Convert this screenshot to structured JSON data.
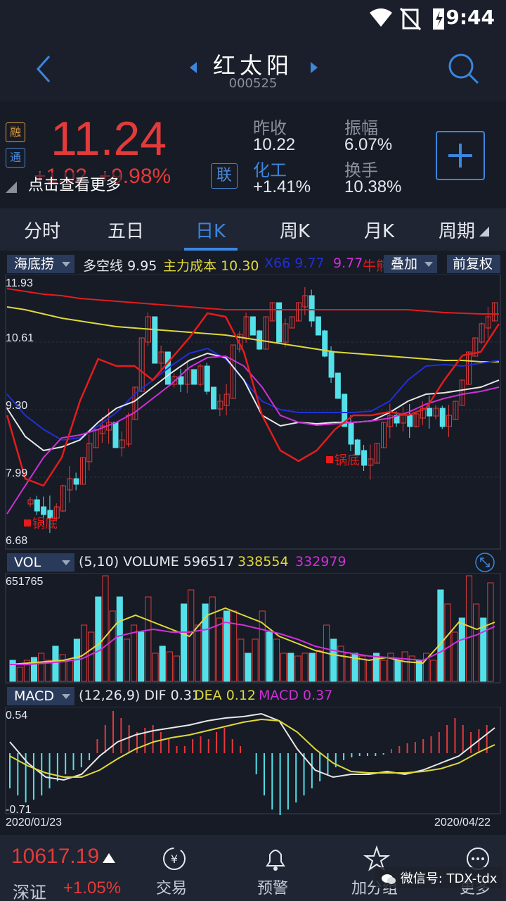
{
  "status": {
    "time": "9:44"
  },
  "header": {
    "title": "红太阳",
    "code": "000525"
  },
  "quote": {
    "badge1": "融",
    "badge2": "通",
    "price": "11.24",
    "change": "+1.02",
    "change_pct": "+9.98%",
    "tip": "点击查看更多",
    "lian": "联",
    "prev_close_label": "昨收",
    "prev_close": "10.22",
    "amplitude_label": "振幅",
    "amplitude": "6.07%",
    "sector_label": "化工",
    "sector_change": "+1.41%",
    "turnover_label": "换手",
    "turnover": "10.38%",
    "add_label": "+"
  },
  "tabs": [
    "分时",
    "五日",
    "日K",
    "周K",
    "月K",
    "周期"
  ],
  "active_tab": "日K",
  "main_chart": {
    "indicator": "海底捞",
    "l1": "多空线",
    "v1": "9.95",
    "l2": "主力成本",
    "v2": "10.30",
    "l3": "X66",
    "v3": "9.77",
    "v4": "9.77",
    "l5": "牛熊",
    "overlay": "叠加",
    "adjust": "前复权",
    "y_labels": [
      "11.93",
      "10.61",
      "9.30",
      "7.99",
      "6.68"
    ],
    "marker1": "锅底",
    "marker2": "锅底",
    "colors": {
      "up": "#e43a3a",
      "down": "#54e0e8",
      "ma_red": "#e41c1c",
      "ma_yellow": "#e0d83a",
      "ma_blue": "#2030d8",
      "ma_white": "#e8e8e8",
      "ma_magenta": "#d030d8"
    }
  },
  "vol_chart": {
    "indicator": "VOL",
    "params": "(5,10) VOLUME",
    "volume": "596517",
    "ma5": "338554",
    "ma10": "332979",
    "y_label": "651765"
  },
  "macd_chart": {
    "indicator": "MACD",
    "params": "(12,26,9)",
    "dif_label": "DIF",
    "dif": "0.31",
    "dea_label": "DEA",
    "dea": "0.12",
    "macd_label": "MACD",
    "macd": "0.37",
    "y_top": "0.54",
    "y_bottom": "-0.71",
    "date_start": "2020/01/23",
    "date_end": "2020/04/22"
  },
  "bottom": {
    "index_value": "10617.19",
    "index_name": "深证",
    "index_change": "+1.05%",
    "nav": [
      "交易",
      "预警",
      "加分组",
      "更多"
    ],
    "watermark": "微信号: TDX-tdx"
  }
}
